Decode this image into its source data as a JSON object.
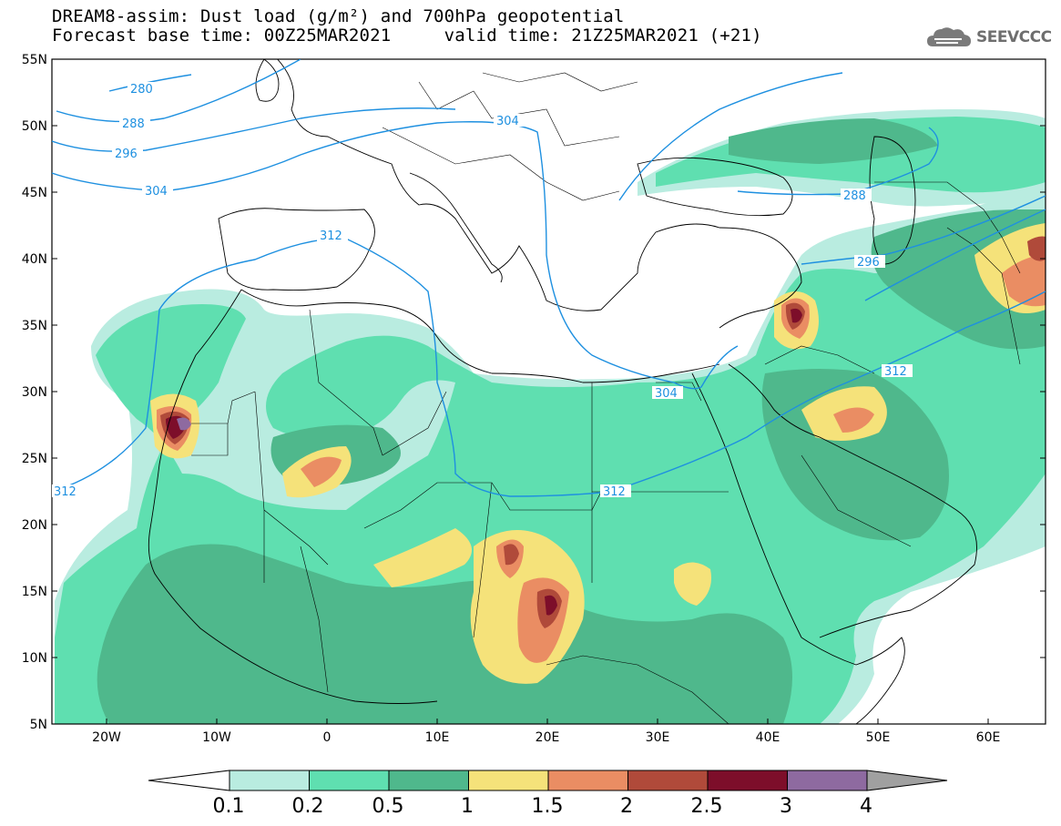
{
  "header": {
    "title_line1": "DREAM8-assim: Dust load (g/m²) and 700hPa geopotential",
    "title_line2": "Forecast base time: 00Z25MAR2021     valid time: 21Z25MAR2021 (+21)"
  },
  "logo": {
    "text": "SEEVCCC",
    "icon": "cloud-icon"
  },
  "map": {
    "lat_labels": [
      "55N",
      "50N",
      "45N",
      "40N",
      "35N",
      "30N",
      "25N",
      "20N",
      "15N",
      "10N",
      "5N"
    ],
    "lon_labels": [
      "20W",
      "10W",
      "0",
      "10E",
      "20E",
      "30E",
      "40E",
      "50E",
      "60E"
    ],
    "contour_labels": [
      "280",
      "288",
      "296",
      "304",
      "312",
      "304",
      "288",
      "296",
      "304",
      "312",
      "312",
      "312"
    ],
    "colors": {
      "contour": "#1e90e0",
      "dust_0_1": "#b9ece0",
      "dust_0_2": "#5fdfb0",
      "dust_0_5": "#4fb88c",
      "dust_1": "#f5e27a",
      "dust_1_5": "#ea8d63",
      "dust_2": "#b04a3a",
      "dust_2_5": "#7d0e2a",
      "dust_3": "#8e6aa0",
      "dust_4": "#a0a0a0"
    }
  },
  "colorbar": {
    "labels": [
      "0.1",
      "0.2",
      "0.5",
      "1",
      "1.5",
      "2",
      "2.5",
      "3",
      "4"
    ],
    "colors": [
      "#b9ece0",
      "#5fdfb0",
      "#4fb88c",
      "#f5e27a",
      "#ea8d63",
      "#b04a3a",
      "#7d0e2a",
      "#8e6aa0"
    ]
  }
}
